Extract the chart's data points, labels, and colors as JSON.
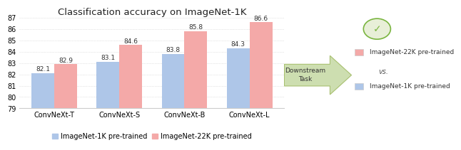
{
  "title": "Classification accuracy on ImageNet-1K",
  "categories": [
    "ConvNeXt-T",
    "ConvNeXt-S",
    "ConvNeXt-B",
    "ConvNeXt-L"
  ],
  "values_1k": [
    82.1,
    83.1,
    83.8,
    84.3
  ],
  "values_22k": [
    82.9,
    84.6,
    85.8,
    86.6
  ],
  "color_1k": "#aec6e8",
  "color_22k": "#f4a9a8",
  "ylim": [
    79,
    87
  ],
  "yticks": [
    79,
    80,
    81,
    82,
    83,
    84,
    85,
    86,
    87
  ],
  "bar_width": 0.35,
  "legend_1k": "ImageNet-1K pre-trained",
  "legend_22k": "ImageNet-22K pre-trained",
  "arrow_text": "Downstream\nTask",
  "side_label_22k": "ImageNet-22K pre-trained",
  "side_label_1k": "ImageNet-1K pre-trained",
  "side_vs": "vs.",
  "arrow_color": "#cddeb0",
  "arrow_border": "#a8c070",
  "check_color": "#7ab540",
  "box_color": "#e8efd8",
  "box_border": "#b8c890",
  "title_fontsize": 9.5,
  "tick_fontsize": 7,
  "label_fontsize": 7,
  "annot_fontsize": 6.5
}
